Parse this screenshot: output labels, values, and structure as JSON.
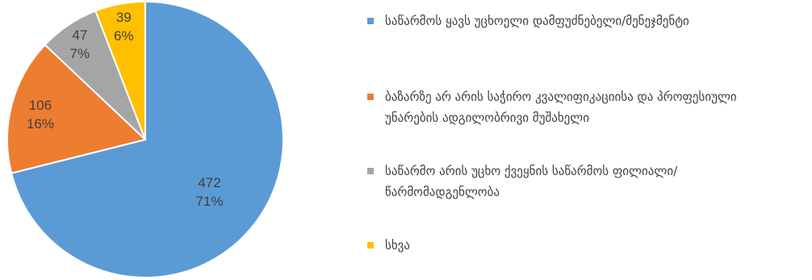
{
  "chart_data": {
    "type": "pie",
    "title": "",
    "categories": [
      "საწარმოს ყავს უცხოელი დამფუძნებელი/მენეჯმენტი",
      "ბაზარზე არ არის საჭირო კვალიფიკაციისა და პროფესიული უნარების ადგილობრივი მუშახელი",
      "საწარმო არის უცხო ქვეყნის საწარმოს ფილიალი/წარმომადგენლობა",
      "სხვა"
    ],
    "values": [
      472,
      106,
      47,
      39
    ],
    "percent_labels": [
      "71%",
      "16%",
      "7%",
      "6%"
    ],
    "colors": [
      "#5b9bd5",
      "#ed7d31",
      "#a5a5a5",
      "#ffc000"
    ],
    "start_angle_deg": 0,
    "direction": "clockwise",
    "legend_position": "right"
  }
}
